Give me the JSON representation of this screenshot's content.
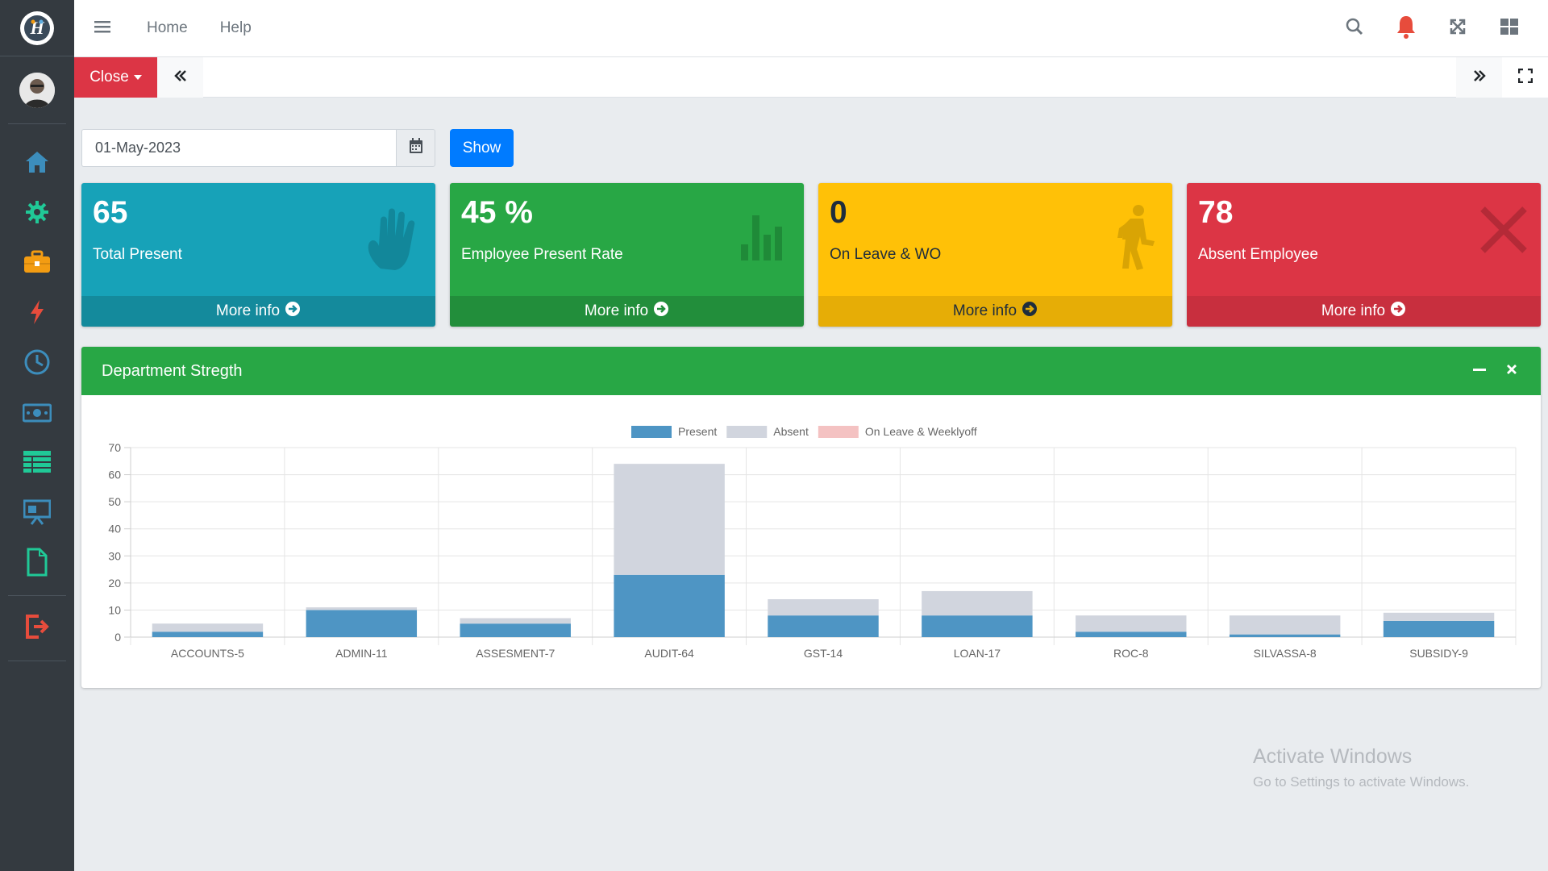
{
  "brand": {
    "logo_icon": "hi-logo-icon"
  },
  "sidebar": {
    "items": [
      {
        "icon": "home-icon",
        "color": "#3c8dbc"
      },
      {
        "icon": "gear-icon",
        "color": "#20c997"
      },
      {
        "icon": "briefcase-icon",
        "color": "#f39c12"
      },
      {
        "icon": "bolt-icon",
        "color": "#e74c3c"
      },
      {
        "icon": "clock-icon",
        "color": "#3c8dbc"
      },
      {
        "icon": "money-icon",
        "color": "#3c8dbc"
      },
      {
        "icon": "table-icon",
        "color": "#20c997"
      },
      {
        "icon": "presentation-icon",
        "color": "#3c8dbc"
      },
      {
        "icon": "file-icon",
        "color": "#20c997"
      },
      {
        "icon": "logout-icon",
        "color": "#e74c3c"
      }
    ]
  },
  "topnav": {
    "home": "Home",
    "help": "Help"
  },
  "tabbar": {
    "close_label": "Close"
  },
  "filter": {
    "date_value": "01-May-2023",
    "show_label": "Show"
  },
  "stats": [
    {
      "value": "65",
      "label": "Total Present",
      "more": "More info",
      "color": "#17a2b8",
      "footer_color": "#148a9c",
      "icon": "hand-icon"
    },
    {
      "value": "45 %",
      "label": "Employee Present Rate",
      "more": "More info",
      "color": "#28a745",
      "footer_color": "#228e3b",
      "icon": "bar-chart-icon"
    },
    {
      "value": "0",
      "label": "On Leave & WO",
      "more": "More info",
      "color": "#ffc107",
      "footer_color": "#e6ad06",
      "icon": "walking-icon"
    },
    {
      "value": "78",
      "label": "Absent Employee",
      "more": "More info",
      "color": "#dc3545",
      "footer_color": "#c82f3e",
      "icon": "x-icon"
    }
  ],
  "department_card": {
    "title": "Department Stregth"
  },
  "chart_data": {
    "type": "bar",
    "stacked": true,
    "categories": [
      "ACCOUNTS-5",
      "ADMIN-11",
      "ASSESMENT-7",
      "AUDIT-64",
      "GST-14",
      "LOAN-17",
      "ROC-8",
      "SILVASSA-8",
      "SUBSIDY-9"
    ],
    "series": [
      {
        "name": "Present",
        "color": "#4e95c4",
        "values": [
          2,
          10,
          5,
          23,
          8,
          8,
          2,
          1,
          6
        ]
      },
      {
        "name": "Absent",
        "color": "#d1d5de",
        "values": [
          3,
          1,
          2,
          41,
          6,
          9,
          6,
          7,
          3
        ]
      },
      {
        "name": "On Leave & Weeklyoff",
        "color": "#f4c2c2",
        "values": [
          0,
          0,
          0,
          0,
          0,
          0,
          0,
          0,
          0
        ]
      }
    ],
    "ylim": [
      0,
      70
    ],
    "yticks": [
      0,
      10,
      20,
      30,
      40,
      50,
      60,
      70
    ],
    "grid": true,
    "legend": "top-center"
  },
  "watermark": {
    "title": "Activate Windows",
    "subtitle": "Go to Settings to activate Windows."
  }
}
